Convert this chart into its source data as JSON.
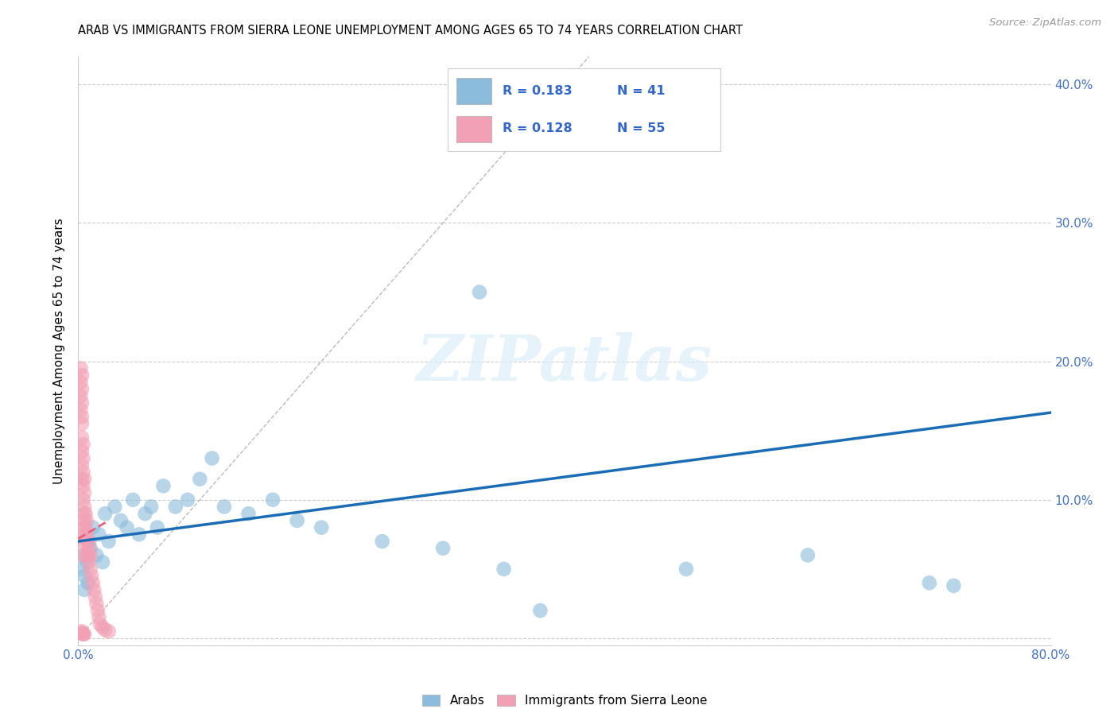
{
  "title": "ARAB VS IMMIGRANTS FROM SIERRA LEONE UNEMPLOYMENT AMONG AGES 65 TO 74 YEARS CORRELATION CHART",
  "source": "Source: ZipAtlas.com",
  "ylabel": "Unemployment Among Ages 65 to 74 years",
  "xlim": [
    0,
    0.8
  ],
  "ylim": [
    -0.005,
    0.42
  ],
  "xticks": [
    0.0,
    0.1,
    0.2,
    0.3,
    0.4,
    0.5,
    0.6,
    0.7,
    0.8
  ],
  "yticks": [
    0.0,
    0.1,
    0.2,
    0.3,
    0.4
  ],
  "xtick_labels": [
    "0.0%",
    "",
    "",
    "",
    "",
    "",
    "",
    "",
    "80.0%"
  ],
  "ytick_labels_right": [
    "",
    "10.0%",
    "20.0%",
    "30.0%",
    "40.0%"
  ],
  "arab_color": "#8BBCDB",
  "sierra_leone_color": "#F2A0B5",
  "arab_line_color": "#1A6DB5",
  "sierra_line_color": "#E8607A",
  "diag_color": "#BBBBBB",
  "arab_R": 0.183,
  "arab_N": 41,
  "sierra_leone_R": 0.128,
  "sierra_leone_N": 55,
  "legend_label_arab": "Arabs",
  "legend_label_sierra": "Immigrants from Sierra Leone",
  "watermark_text": "ZIPatlas",
  "arab_scatter_x": [
    0.003,
    0.004,
    0.005,
    0.005,
    0.007,
    0.008,
    0.009,
    0.01,
    0.012,
    0.015,
    0.017,
    0.02,
    0.022,
    0.025,
    0.03,
    0.035,
    0.04,
    0.045,
    0.05,
    0.055,
    0.06,
    0.065,
    0.07,
    0.08,
    0.09,
    0.1,
    0.11,
    0.12,
    0.14,
    0.16,
    0.18,
    0.2,
    0.25,
    0.3,
    0.35,
    0.38,
    0.5,
    0.6,
    0.7,
    0.72,
    0.33
  ],
  "arab_scatter_y": [
    0.05,
    0.06,
    0.045,
    0.035,
    0.055,
    0.04,
    0.07,
    0.065,
    0.08,
    0.06,
    0.075,
    0.055,
    0.09,
    0.07,
    0.095,
    0.085,
    0.08,
    0.1,
    0.075,
    0.09,
    0.095,
    0.08,
    0.11,
    0.095,
    0.1,
    0.115,
    0.13,
    0.095,
    0.09,
    0.1,
    0.085,
    0.08,
    0.07,
    0.065,
    0.05,
    0.02,
    0.05,
    0.06,
    0.04,
    0.038,
    0.25
  ],
  "sierra_scatter_x": [
    0.002,
    0.002,
    0.002,
    0.002,
    0.003,
    0.003,
    0.003,
    0.003,
    0.003,
    0.003,
    0.003,
    0.003,
    0.003,
    0.004,
    0.004,
    0.004,
    0.004,
    0.004,
    0.005,
    0.005,
    0.005,
    0.005,
    0.005,
    0.006,
    0.006,
    0.006,
    0.007,
    0.007,
    0.007,
    0.008,
    0.008,
    0.009,
    0.009,
    0.01,
    0.01,
    0.011,
    0.012,
    0.013,
    0.014,
    0.015,
    0.016,
    0.017,
    0.018,
    0.02,
    0.022,
    0.025,
    0.003,
    0.003,
    0.004,
    0.005,
    0.003,
    0.003,
    0.004,
    0.004,
    0.005
  ],
  "sierra_scatter_y": [
    0.195,
    0.185,
    0.175,
    0.165,
    0.19,
    0.18,
    0.17,
    0.16,
    0.155,
    0.145,
    0.135,
    0.125,
    0.115,
    0.14,
    0.13,
    0.12,
    0.11,
    0.1,
    0.115,
    0.105,
    0.095,
    0.085,
    0.075,
    0.09,
    0.08,
    0.07,
    0.085,
    0.075,
    0.06,
    0.07,
    0.06,
    0.065,
    0.055,
    0.06,
    0.05,
    0.045,
    0.04,
    0.035,
    0.03,
    0.025,
    0.02,
    0.015,
    0.01,
    0.008,
    0.006,
    0.005,
    0.07,
    0.06,
    0.08,
    0.09,
    0.005,
    0.004,
    0.003,
    0.003,
    0.003
  ]
}
